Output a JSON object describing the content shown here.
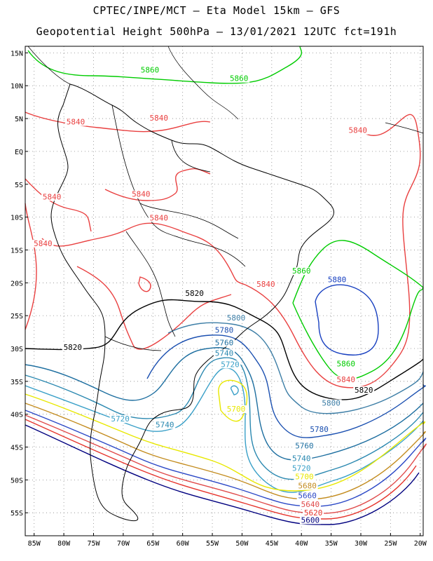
{
  "title_line1": "CPTEC/INPE/MCT  –  Eta Model 15km – GFS",
  "title_line2": "Geopotential Height 500hPa – 13/01/2021 12UTC fct=191h",
  "lat_ticks": [
    "15N",
    "10N",
    "5N",
    "EQ",
    "5S",
    "10S",
    "15S",
    "20S",
    "25S",
    "30S",
    "35S",
    "40S",
    "45S",
    "50S",
    "55S"
  ],
  "lon_ticks": [
    "85W",
    "80W",
    "75W",
    "70W",
    "65W",
    "60W",
    "55W",
    "50W",
    "45W",
    "40W",
    "35W",
    "30W",
    "25W",
    "20W"
  ],
  "colors": {
    "5600": "#00007f",
    "5620": "#e6352d",
    "5640": "#e04b4b",
    "5660": "#2b48c6",
    "5680": "#c38c1f",
    "5700": "#e8e800",
    "5720": "#3aa0c8",
    "5740": "#2a88b0",
    "5760": "#1e6fa0",
    "5780": "#1a4fb0",
    "5800": "#3d7ea6",
    "5820": "#000000",
    "5840": "#e94040",
    "5860": "#00cc00",
    "5880": "#1840c0",
    "coast": "#000000",
    "grid": "#888888"
  },
  "contour_labels": [
    {
      "text": "5860",
      "color": "5860",
      "lon": -65.5,
      "lat": 12.1
    },
    {
      "text": "5860",
      "color": "5860",
      "lon": -50.5,
      "lat": 10.8
    },
    {
      "text": "5840",
      "color": "5840",
      "lon": -78.0,
      "lat": 4.2
    },
    {
      "text": "5840",
      "color": "5840",
      "lon": -64.0,
      "lat": 4.8
    },
    {
      "text": "5840",
      "color": "5840",
      "lon": -82.0,
      "lat": -7.2
    },
    {
      "text": "5840",
      "color": "5840",
      "lon": -67.0,
      "lat": -6.8
    },
    {
      "text": "5840",
      "color": "5840",
      "lon": -64.0,
      "lat": -10.4
    },
    {
      "text": "5840",
      "color": "5840",
      "lon": -83.5,
      "lat": -14.3
    },
    {
      "text": "5840",
      "color": "5840",
      "lon": -30.5,
      "lat": 2.9
    },
    {
      "text": "5860",
      "color": "5860",
      "lon": -40.0,
      "lat": -18.5
    },
    {
      "text": "5840",
      "color": "5840",
      "lon": -46.0,
      "lat": -20.5
    },
    {
      "text": "5880",
      "color": "5880",
      "lon": -34.0,
      "lat": -19.8
    },
    {
      "text": "5820",
      "color": "5820",
      "lon": -58.0,
      "lat": -21.9
    },
    {
      "text": "5820",
      "color": "5820",
      "lon": -78.5,
      "lat": -30.1
    },
    {
      "text": "5800",
      "color": "5800",
      "lon": -51.0,
      "lat": -25.6
    },
    {
      "text": "5780",
      "color": "5780",
      "lon": -53.0,
      "lat": -27.5
    },
    {
      "text": "5760",
      "color": "5760",
      "lon": -53.0,
      "lat": -29.4
    },
    {
      "text": "5740",
      "color": "5740",
      "lon": -53.0,
      "lat": -31.0
    },
    {
      "text": "5720",
      "color": "5720",
      "lon": -52.0,
      "lat": -32.7
    },
    {
      "text": "5700",
      "color": "5700",
      "lon": -51.0,
      "lat": -39.5
    },
    {
      "text": "5720",
      "color": "5720",
      "lon": -70.5,
      "lat": -41.0
    },
    {
      "text": "5740",
      "color": "5740",
      "lon": -63.0,
      "lat": -41.9
    },
    {
      "text": "5860",
      "color": "5860",
      "lon": -32.5,
      "lat": -32.6
    },
    {
      "text": "5840",
      "color": "5840",
      "lon": -32.5,
      "lat": -35.0
    },
    {
      "text": "5820",
      "color": "5820",
      "lon": -29.5,
      "lat": -36.6
    },
    {
      "text": "5800",
      "color": "5800",
      "lon": -35.0,
      "lat": -38.6
    },
    {
      "text": "5780",
      "color": "5780",
      "lon": -37.0,
      "lat": -42.6
    },
    {
      "text": "5760",
      "color": "5760",
      "lon": -39.5,
      "lat": -45.1
    },
    {
      "text": "5740",
      "color": "5740",
      "lon": -40.0,
      "lat": -47.0
    },
    {
      "text": "5720",
      "color": "5720",
      "lon": -40.0,
      "lat": -48.5
    },
    {
      "text": "5700",
      "color": "5700",
      "lon": -39.5,
      "lat": -49.8
    },
    {
      "text": "5680",
      "color": "5680",
      "lon": -39.0,
      "lat": -51.2
    },
    {
      "text": "5660",
      "color": "5660",
      "lon": -39.0,
      "lat": -52.7
    },
    {
      "text": "5640",
      "color": "5640",
      "lon": -38.5,
      "lat": -54.0
    },
    {
      "text": "5620",
      "color": "5620",
      "lon": -38.0,
      "lat": -55.3
    },
    {
      "text": "5600",
      "color": "5600",
      "lon": -38.5,
      "lat": -56.4
    }
  ]
}
